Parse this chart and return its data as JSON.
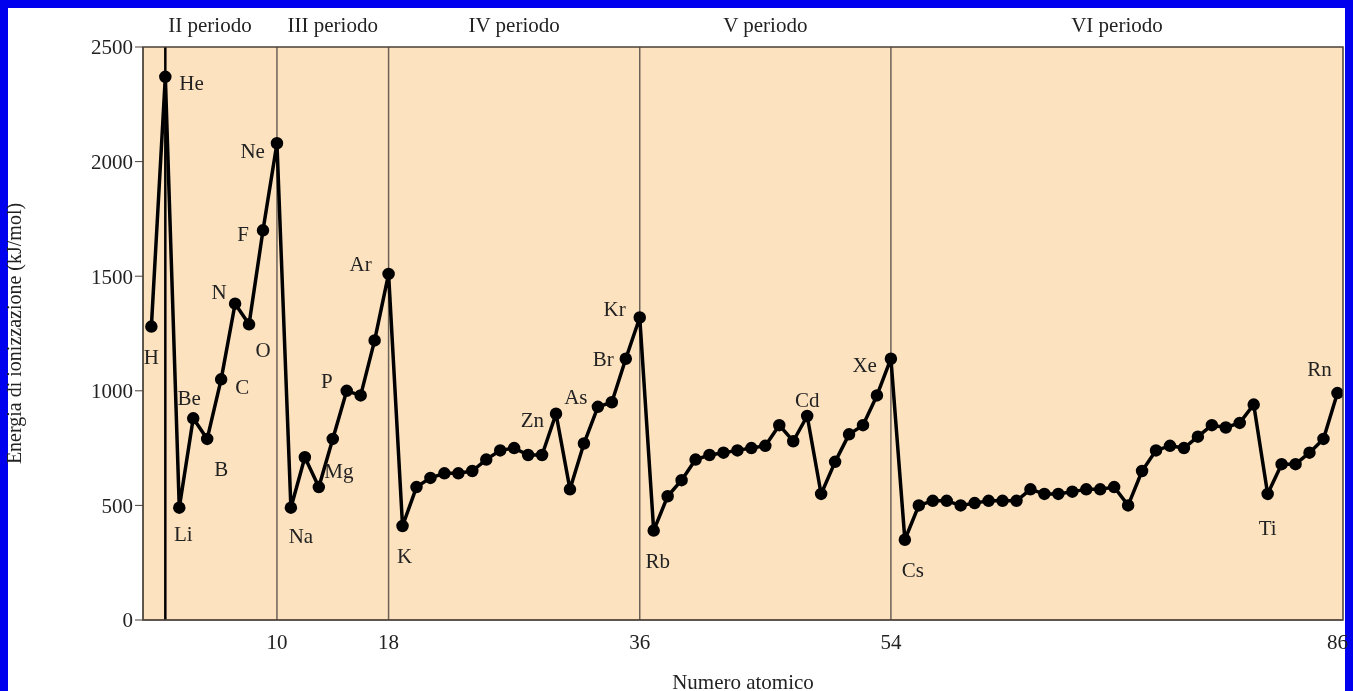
{
  "chart_data": {
    "type": "line",
    "xlabel": "Numero atomico",
    "ylabel": "Energia di ionizzazione (kJ/mol)",
    "x": [
      1,
      2,
      3,
      4,
      5,
      6,
      7,
      8,
      9,
      10,
      11,
      12,
      13,
      14,
      15,
      16,
      17,
      18,
      19,
      20,
      21,
      22,
      23,
      24,
      25,
      26,
      27,
      28,
      29,
      30,
      31,
      32,
      33,
      34,
      35,
      36,
      37,
      38,
      39,
      40,
      41,
      42,
      43,
      44,
      45,
      46,
      47,
      48,
      49,
      50,
      51,
      52,
      53,
      54,
      55,
      56,
      57,
      58,
      59,
      60,
      61,
      62,
      63,
      64,
      65,
      66,
      67,
      68,
      69,
      70,
      71,
      72,
      73,
      74,
      75,
      76,
      77,
      78,
      79,
      80,
      81,
      82,
      83,
      84,
      85,
      86
    ],
    "series": [
      {
        "color": "#000000",
        "values": [
          1280,
          2370,
          490,
          880,
          790,
          1050,
          1380,
          1290,
          1700,
          2080,
          490,
          710,
          580,
          790,
          1000,
          980,
          1220,
          1510,
          410,
          580,
          620,
          640,
          640,
          650,
          700,
          740,
          750,
          720,
          720,
          900,
          570,
          770,
          930,
          950,
          1140,
          1320,
          390,
          540,
          610,
          700,
          720,
          730,
          740,
          750,
          760,
          850,
          780,
          890,
          550,
          690,
          810,
          850,
          980,
          1140,
          350,
          500,
          520,
          520,
          500,
          510,
          520,
          520,
          520,
          570,
          550,
          550,
          560,
          570,
          570,
          580,
          500,
          650,
          740,
          760,
          750,
          800,
          850,
          840,
          860,
          940,
          550,
          680,
          680,
          730,
          790,
          990
        ]
      }
    ],
    "xlim": [
      0.4,
      86.4
    ],
    "xticks": [
      10,
      18,
      36,
      54,
      86
    ],
    "ylim": [
      0,
      2500
    ],
    "yticks": [
      0,
      500,
      1000,
      1500,
      2000,
      2500
    ],
    "marker": "circle",
    "line_style": "solid",
    "ref_lines": [
      {
        "axis": "x",
        "value": 2,
        "color": "#000000"
      },
      {
        "axis": "x",
        "value": 10,
        "color": "#6b6157"
      },
      {
        "axis": "x",
        "value": 18,
        "color": "#6b6157"
      },
      {
        "axis": "x",
        "value": 36,
        "color": "#6b6157"
      },
      {
        "axis": "x",
        "value": 54,
        "color": "#6b6157"
      }
    ],
    "bands": [
      {
        "axis": "x",
        "from": 0.4,
        "to": 10,
        "label": "II periodo",
        "color": "#fde2bf"
      },
      {
        "axis": "x",
        "from": 10,
        "to": 18,
        "label": "III periodo",
        "color": "#fde2bf"
      },
      {
        "axis": "x",
        "from": 18,
        "to": 36,
        "label": "IV periodo",
        "color": "#fde2bf"
      },
      {
        "axis": "x",
        "from": 36,
        "to": 54,
        "label": "V periodo",
        "color": "#fde2bf"
      },
      {
        "axis": "x",
        "from": 54,
        "to": 86.4,
        "label": "VI periodo",
        "color": "#fde2bf"
      }
    ],
    "annotations": [
      {
        "text": "H",
        "x": 1,
        "y": 1280
      },
      {
        "text": "He",
        "x": 2,
        "y": 2370
      },
      {
        "text": "Li",
        "x": 3,
        "y": 490
      },
      {
        "text": "Be",
        "x": 4,
        "y": 880
      },
      {
        "text": "B",
        "x": 5,
        "y": 790
      },
      {
        "text": "C",
        "x": 6,
        "y": 1050
      },
      {
        "text": "N",
        "x": 7,
        "y": 1380
      },
      {
        "text": "O",
        "x": 8,
        "y": 1290
      },
      {
        "text": "F",
        "x": 9,
        "y": 1700
      },
      {
        "text": "Ne",
        "x": 10,
        "y": 2080
      },
      {
        "text": "Na",
        "x": 11,
        "y": 490
      },
      {
        "text": "Mg",
        "x": 12,
        "y": 710
      },
      {
        "text": "P",
        "x": 15,
        "y": 1000
      },
      {
        "text": "Ar",
        "x": 18,
        "y": 1510
      },
      {
        "text": "K",
        "x": 19,
        "y": 410
      },
      {
        "text": "Zn",
        "x": 30,
        "y": 900
      },
      {
        "text": "As",
        "x": 33,
        "y": 930
      },
      {
        "text": "Br",
        "x": 35,
        "y": 1140
      },
      {
        "text": "Kr",
        "x": 36,
        "y": 1320
      },
      {
        "text": "Rb",
        "x": 37,
        "y": 390
      },
      {
        "text": "Cd",
        "x": 48,
        "y": 890
      },
      {
        "text": "Xe",
        "x": 54,
        "y": 1140
      },
      {
        "text": "Cs",
        "x": 55,
        "y": 350
      },
      {
        "text": "Ti",
        "x": 81,
        "y": 550
      },
      {
        "text": "Rn",
        "x": 86,
        "y": 990
      }
    ]
  }
}
